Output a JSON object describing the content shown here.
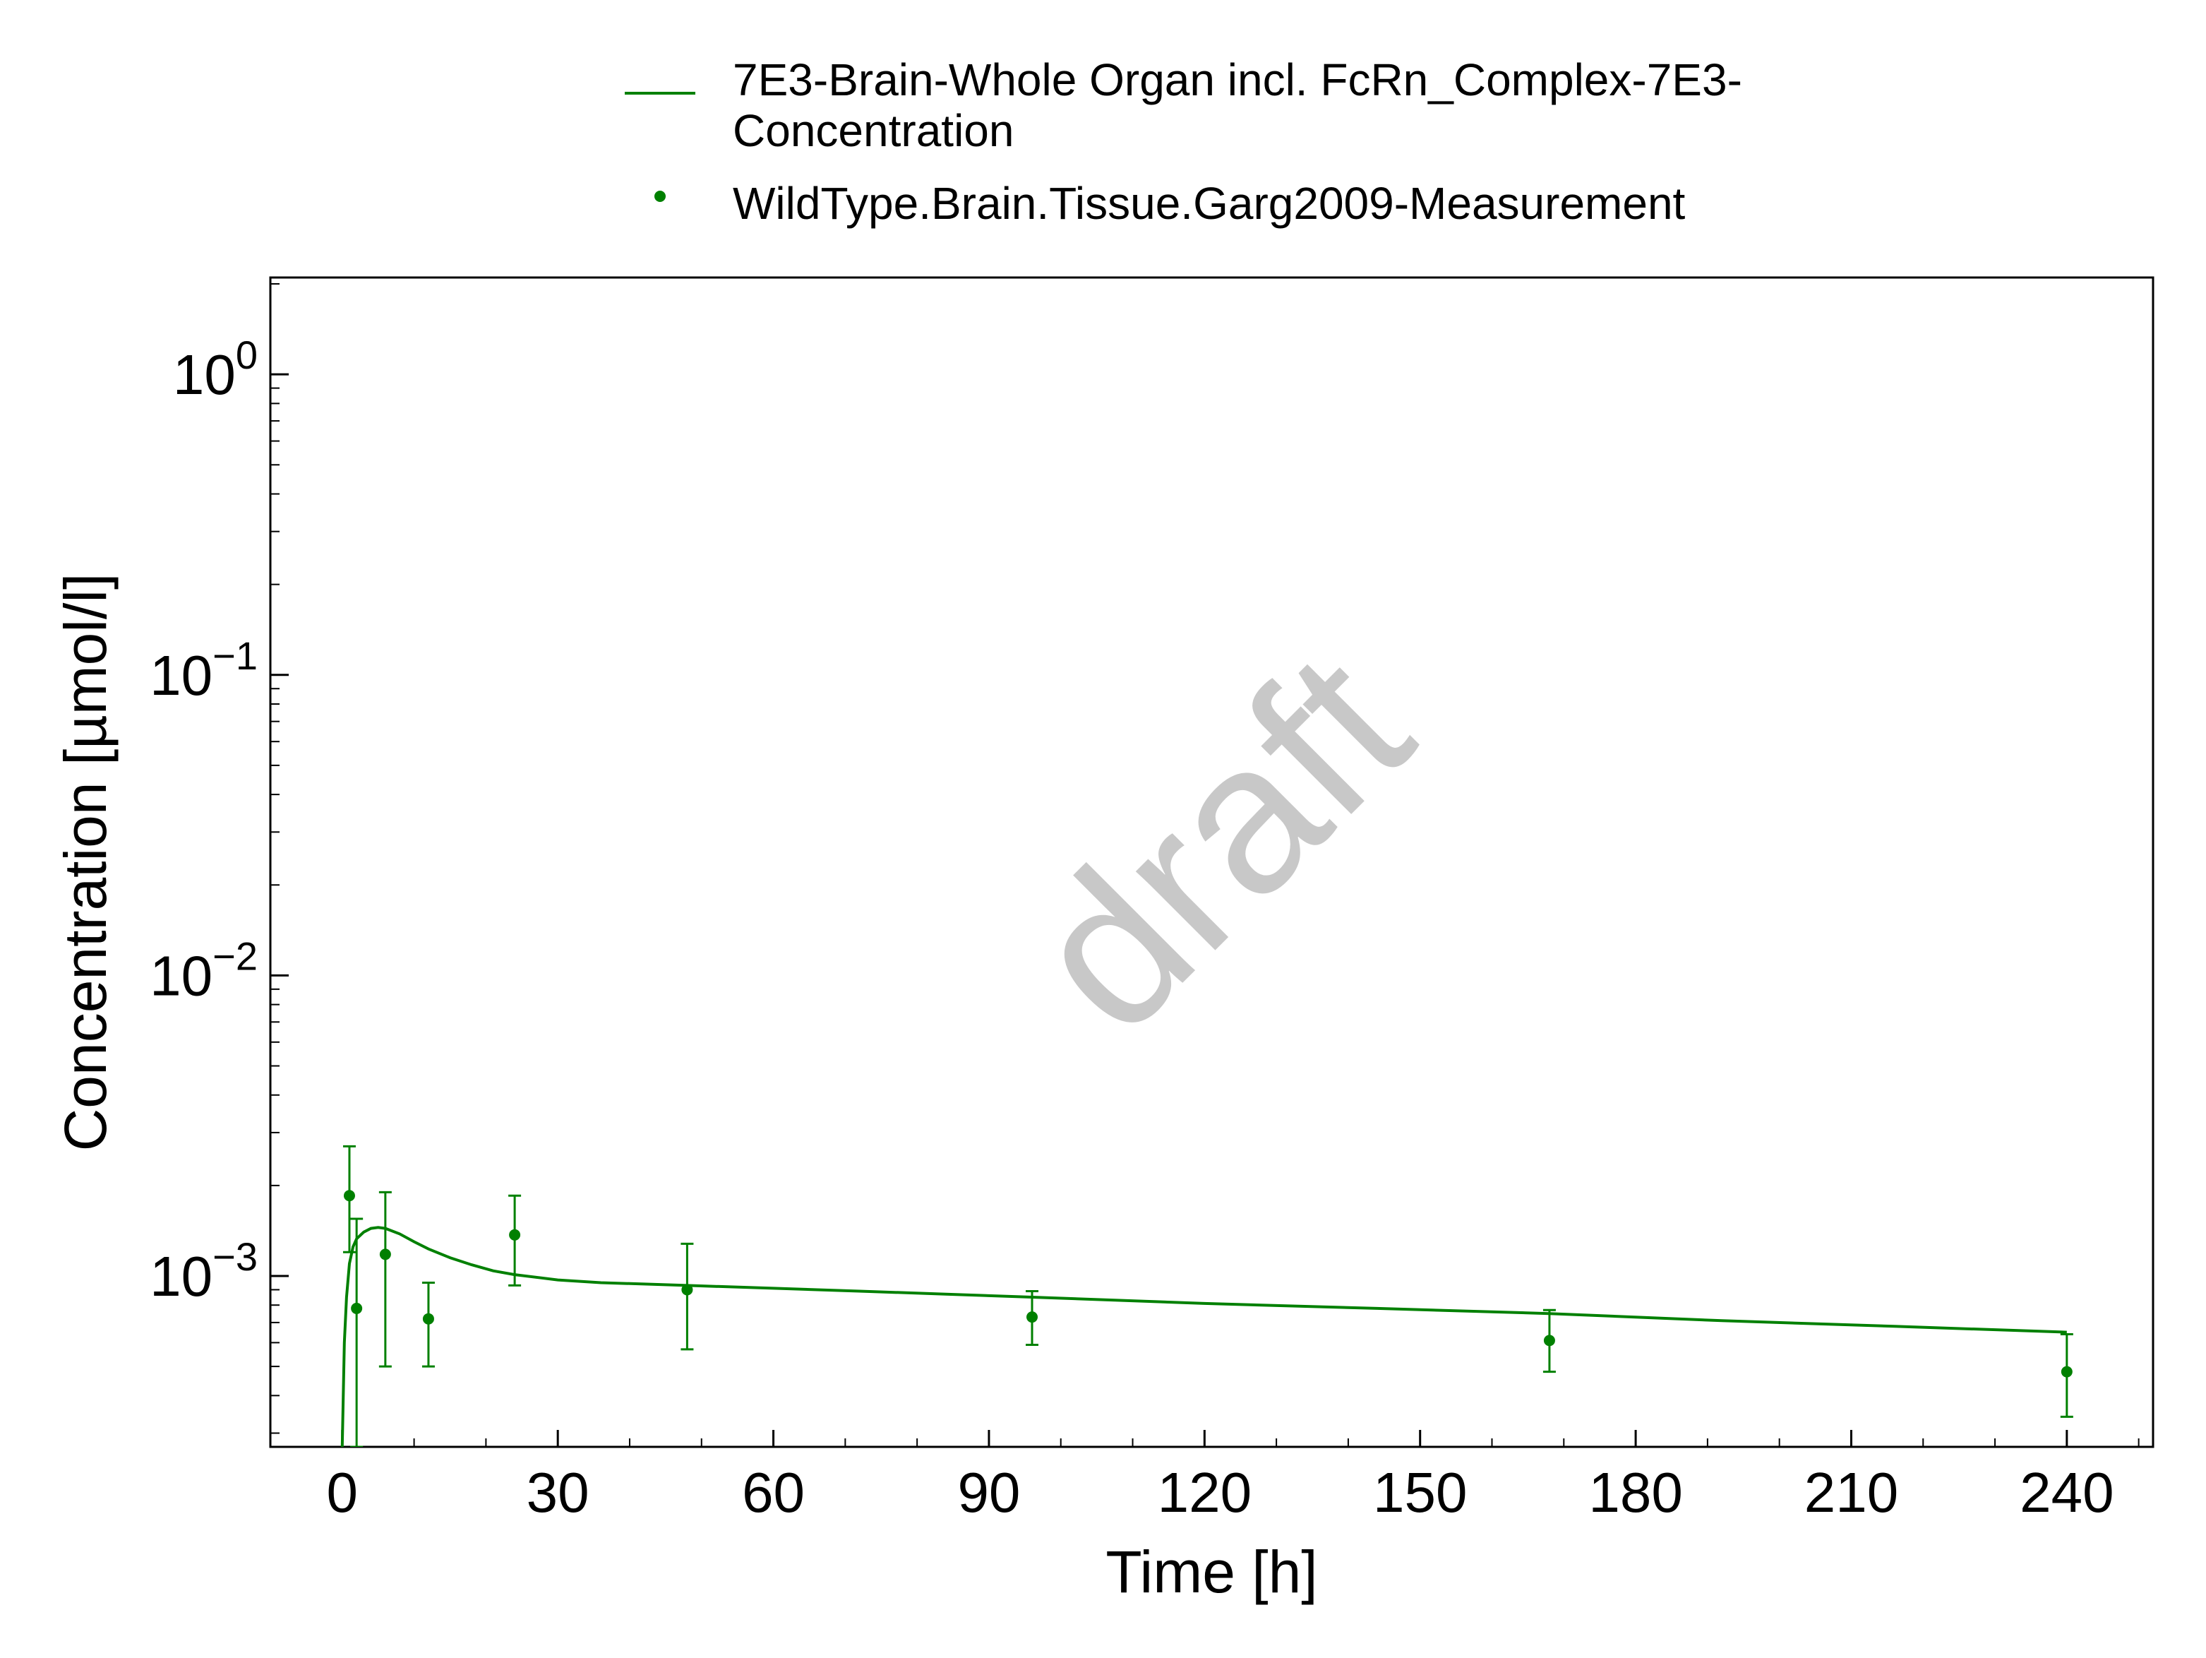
{
  "chart_data": {
    "type": "line",
    "xlabel": "Time [h]",
    "ylabel": "Concentration [µmol/l]",
    "watermark": "draft",
    "xlim": [
      -10,
      252
    ],
    "ylim": [
      0.00027,
      2.1
    ],
    "yscale": "log",
    "xticks": [
      0,
      30,
      60,
      90,
      120,
      150,
      180,
      210,
      240
    ],
    "xtick_labels": [
      "0",
      "30",
      "60",
      "90",
      "120",
      "150",
      "180",
      "210",
      "240"
    ],
    "yticks": [
      {
        "value": 1,
        "base": "10",
        "exp": "0"
      },
      {
        "value": 0.1,
        "base": "10",
        "exp": "−1"
      },
      {
        "value": 0.01,
        "base": "10",
        "exp": "−2"
      },
      {
        "value": 0.001,
        "base": "10",
        "exp": "−3"
      }
    ],
    "grid": false,
    "legend_position": "top",
    "color": "#008000",
    "series": [
      {
        "name": "7E3-Brain-Whole Organ incl. FcRn_Complex-7E3-Concentration",
        "name_lines": [
          "7E3-Brain-Whole Organ incl. FcRn_Complex-7E3-",
          "Concentration"
        ],
        "kind": "line",
        "x": [
          0,
          0.3,
          0.6,
          1,
          1.5,
          2,
          3,
          4,
          5,
          6,
          8,
          10,
          12,
          15,
          18,
          21,
          24,
          30,
          36,
          42,
          48,
          60,
          72,
          84,
          96,
          120,
          144,
          168,
          192,
          216,
          240
        ],
        "y": [
          0.00027,
          0.0006,
          0.00085,
          0.0011,
          0.00125,
          0.00133,
          0.0014,
          0.00144,
          0.00145,
          0.00144,
          0.00138,
          0.0013,
          0.00123,
          0.00115,
          0.00109,
          0.00104,
          0.00101,
          0.00097,
          0.00095,
          0.00094,
          0.00093,
          0.00091,
          0.00089,
          0.00087,
          0.00085,
          0.00081,
          0.00078,
          0.00075,
          0.00071,
          0.00068,
          0.00065
        ]
      },
      {
        "name": "WildType.Brain.Tissue.Garg2009-Measurement",
        "name_lines": [
          "WildType.Brain.Tissue.Garg2009-Measurement"
        ],
        "kind": "scatter",
        "points": [
          {
            "x": 1,
            "y": 0.00185,
            "lo": 0.0012,
            "hi": 0.0027
          },
          {
            "x": 2,
            "y": 0.00078,
            "lo": 0.00027,
            "hi": 0.00155
          },
          {
            "x": 6,
            "y": 0.00118,
            "lo": 0.0005,
            "hi": 0.0019
          },
          {
            "x": 12,
            "y": 0.00072,
            "lo": 0.0005,
            "hi": 0.00095
          },
          {
            "x": 24,
            "y": 0.00137,
            "lo": 0.00093,
            "hi": 0.00185
          },
          {
            "x": 48,
            "y": 0.0009,
            "lo": 0.00057,
            "hi": 0.00128
          },
          {
            "x": 96,
            "y": 0.00073,
            "lo": 0.00059,
            "hi": 0.00089
          },
          {
            "x": 168,
            "y": 0.00061,
            "lo": 0.00048,
            "hi": 0.00077
          },
          {
            "x": 240,
            "y": 0.00048,
            "lo": 0.00034,
            "hi": 0.00064
          }
        ]
      }
    ]
  }
}
